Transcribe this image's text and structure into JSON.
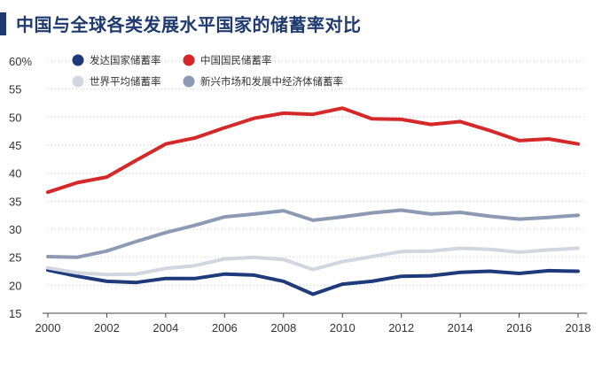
{
  "title": "中国与全球各类发展水平国家的储蓄率对比",
  "chart_data": {
    "type": "line",
    "x": [
      2000,
      2001,
      2002,
      2003,
      2004,
      2005,
      2006,
      2007,
      2008,
      2009,
      2010,
      2011,
      2012,
      2013,
      2014,
      2015,
      2016,
      2017,
      2018
    ],
    "x_ticks": [
      "2000",
      "2002",
      "2004",
      "2006",
      "2008",
      "2010",
      "2012",
      "2014",
      "2016",
      "2018"
    ],
    "y_ticks": [
      "60%",
      "55",
      "50",
      "45",
      "40",
      "35",
      "30",
      "25",
      "20",
      "15"
    ],
    "ylim": [
      15,
      60
    ],
    "xlim": [
      2000,
      2018
    ],
    "grid": "horizontal dotted",
    "legend_position": "top-left",
    "series": [
      {
        "name": "发达国家储蓄率",
        "color": "#1f3a7a",
        "values": [
          22.7,
          21.6,
          20.7,
          20.5,
          21.2,
          21.2,
          22.0,
          21.8,
          20.7,
          18.4,
          20.2,
          20.7,
          21.6,
          21.7,
          22.3,
          22.5,
          22.1,
          22.6,
          22.5
        ]
      },
      {
        "name": "世界平均储蓄率",
        "color": "#d2d6e0",
        "values": [
          23.1,
          22.2,
          21.9,
          22.0,
          23.0,
          23.5,
          24.7,
          25.0,
          24.6,
          22.8,
          24.2,
          25.1,
          26.0,
          26.1,
          26.6,
          26.4,
          25.9,
          26.3,
          26.6
        ]
      },
      {
        "name": "中国国民储蓄率",
        "color": "#d62828",
        "values": [
          36.6,
          38.3,
          39.3,
          42.3,
          45.2,
          46.3,
          48.1,
          49.8,
          50.7,
          50.5,
          51.6,
          49.7,
          49.6,
          48.7,
          49.2,
          47.6,
          45.8,
          46.1,
          45.2
        ]
      },
      {
        "name": "新兴市场和发展中经济体储蓄率",
        "color": "#8c9bb3",
        "values": [
          25.1,
          25.0,
          26.1,
          27.8,
          29.4,
          30.7,
          32.2,
          32.7,
          33.3,
          31.6,
          32.2,
          32.9,
          33.4,
          32.7,
          33.0,
          32.3,
          31.8,
          32.1,
          32.5
        ]
      }
    ]
  }
}
